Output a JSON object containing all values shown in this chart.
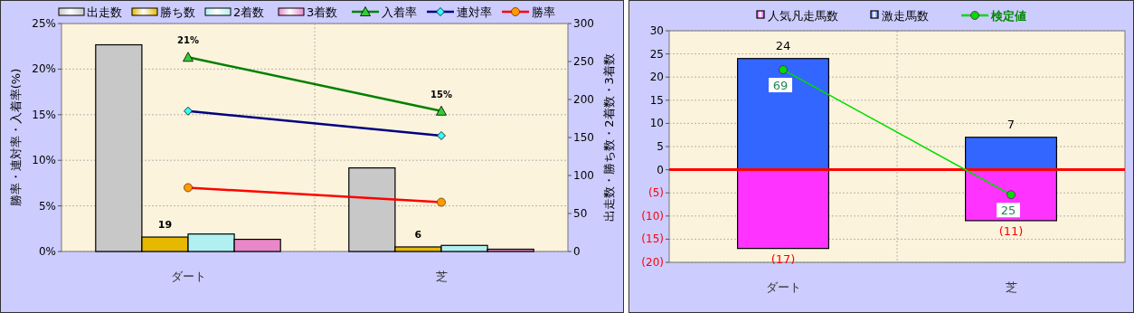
{
  "chart_data": [
    {
      "type": "bar",
      "categories": [
        "ダート",
        "芝"
      ],
      "ylabel": "勝率・連対率・入着率(%)",
      "y2label": "出走数・勝ち数・2着数・3着数",
      "ylim": [
        0,
        25
      ],
      "yticks": [
        {
          "value": 0,
          "label": "0%"
        },
        {
          "value": 5,
          "label": "5%"
        },
        {
          "value": 10,
          "label": "10%"
        },
        {
          "value": 15,
          "label": "15%"
        },
        {
          "value": 20,
          "label": "20%"
        },
        {
          "value": 25,
          "label": "25%"
        }
      ],
      "y2lim": [
        0,
        300
      ],
      "y2ticks": [
        0,
        50,
        100,
        150,
        200,
        250,
        300
      ],
      "grid": true,
      "legend": "top",
      "series": [
        {
          "name": "出走数",
          "color": "#c8c8c8",
          "axis": "y2",
          "values": [
            272,
            110
          ]
        },
        {
          "name": "勝ち数",
          "color": "#e6b800",
          "axis": "y2",
          "values": [
            19,
            6
          ],
          "value_labels": [
            "19",
            "6"
          ]
        },
        {
          "name": "2着数",
          "color": "#b0f0f0",
          "axis": "y2",
          "values": [
            23,
            8
          ]
        },
        {
          "name": "3着数",
          "color": "#e888c8",
          "axis": "y2",
          "values": [
            16,
            3
          ]
        },
        {
          "name": "入着率",
          "type": "line",
          "color": "#008000",
          "marker": "triangle",
          "values": [
            21.3,
            15.4
          ],
          "value_labels": [
            "21%",
            "15%"
          ]
        },
        {
          "name": "連対率",
          "type": "line",
          "color": "#000080",
          "marker": "diamond",
          "values": [
            15.4,
            12.7
          ]
        },
        {
          "name": "勝率",
          "type": "line",
          "color": "#ff0000",
          "marker": "circle",
          "values": [
            7.0,
            5.4
          ]
        }
      ]
    },
    {
      "type": "bar",
      "stacked": true,
      "categories": [
        "ダート",
        "芝"
      ],
      "ylim": [
        -20,
        30
      ],
      "yticks": [
        {
          "value": -20,
          "label": "(20)"
        },
        {
          "value": -15,
          "label": "(15)"
        },
        {
          "value": -10,
          "label": "(10)"
        },
        {
          "value": -5,
          "label": "(5)"
        },
        0,
        5,
        10,
        15,
        20,
        25,
        30
      ],
      "y2lim": [
        1.2,
        82.7
      ],
      "grid": true,
      "legend": "top",
      "ref_lines": [
        {
          "axis": "y",
          "value": 0,
          "color": "#ff0000"
        }
      ],
      "series": [
        {
          "name": "人気凡走馬数",
          "color": "#ff33ff",
          "values": [
            -17,
            -11
          ],
          "value_labels": [
            "(17)",
            "(11)"
          ]
        },
        {
          "name": "激走馬数",
          "color": "#3366ff",
          "values": [
            24,
            7
          ],
          "value_labels": [
            "24",
            "7"
          ]
        },
        {
          "name": "検定値",
          "type": "line",
          "color": "#00dd00",
          "marker": "circle",
          "axis": "y2",
          "values": [
            69,
            25
          ],
          "data_labels": true
        }
      ]
    }
  ]
}
